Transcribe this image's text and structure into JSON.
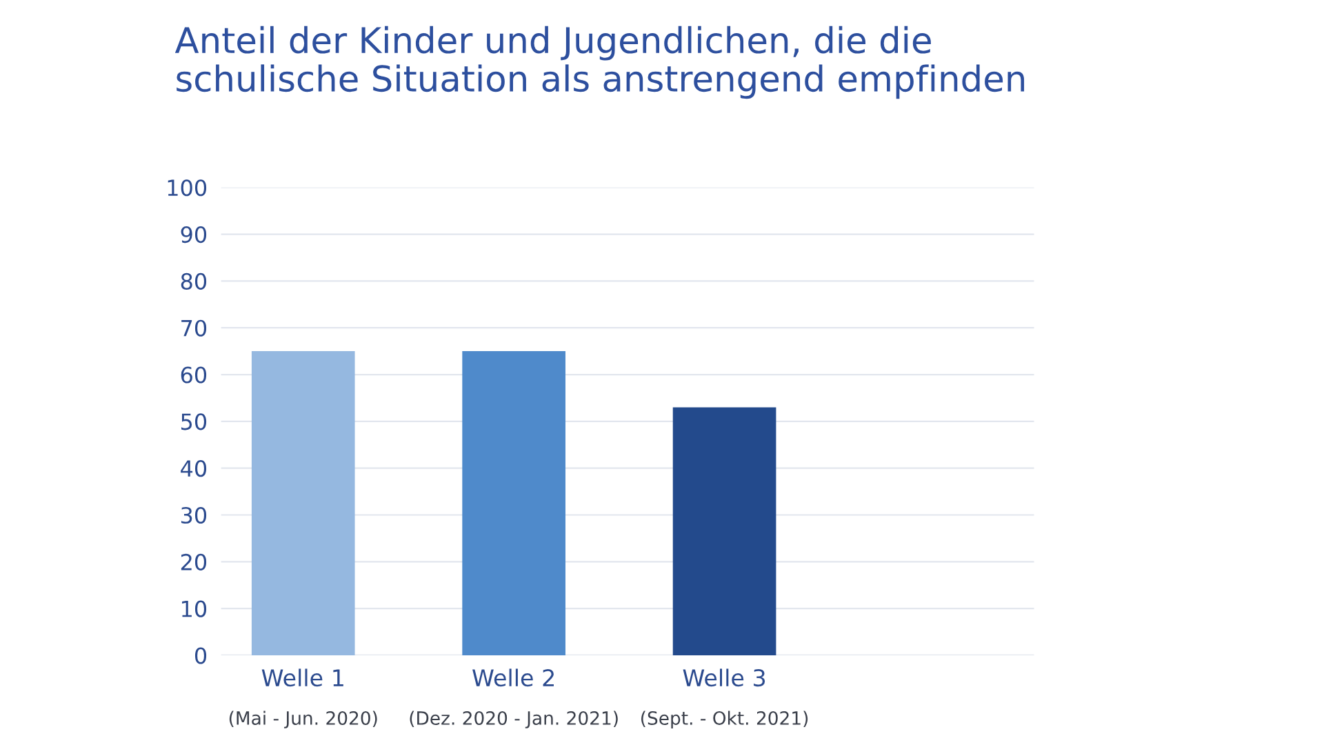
{
  "chart_data": {
    "type": "bar",
    "title": "Anteil der Kinder und Jugendlichen, die die\nschulische Situation als anstrengend empfinden",
    "categories": [
      "Welle 1\n(Mai - Jun. 2020)",
      "Welle 2\n(Dez. 2020 - Jan. 2021)",
      "Welle 3\n(Sept. - Okt. 2021)"
    ],
    "values": [
      65,
      65,
      53
    ],
    "colors": [
      "#95b8e0",
      "#4f8acb",
      "#234a8c"
    ],
    "ylim": [
      0,
      100
    ],
    "yticks": [
      0,
      10,
      20,
      30,
      40,
      50,
      60,
      70,
      80,
      90,
      100
    ],
    "grid": "y",
    "legend": false
  }
}
